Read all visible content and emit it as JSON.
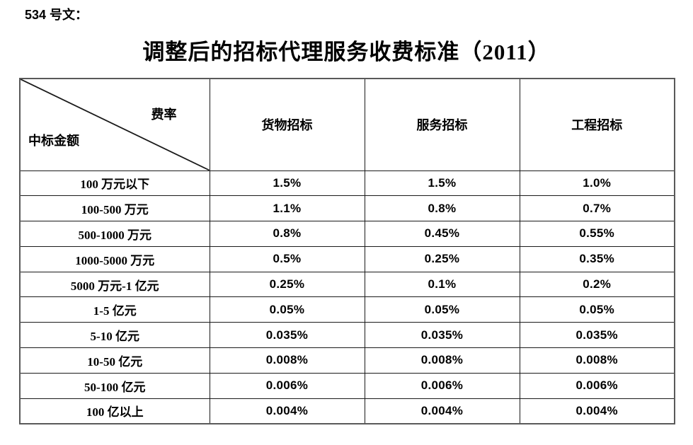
{
  "page": {
    "doc_label": "534 号文：",
    "title": "调整后的招标代理服务收费标准（2011）"
  },
  "table": {
    "corner": {
      "top_right": "费率",
      "bottom_left": "中标金额"
    },
    "columns": [
      "货物招标",
      "服务招标",
      "工程招标"
    ],
    "rows": [
      {
        "label": "100 万元以下",
        "values": [
          "1.5%",
          "1.5%",
          "1.0%"
        ]
      },
      {
        "label": "100-500 万元",
        "values": [
          "1.1%",
          "0.8%",
          "0.7%"
        ]
      },
      {
        "label": "500-1000 万元",
        "values": [
          "0.8%",
          "0.45%",
          "0.55%"
        ]
      },
      {
        "label": "1000-5000 万元",
        "values": [
          "0.5%",
          "0.25%",
          "0.35%"
        ]
      },
      {
        "label": "5000 万元-1 亿元",
        "values": [
          "0.25%",
          "0.1%",
          "0.2%"
        ]
      },
      {
        "label": "1-5 亿元",
        "values": [
          "0.05%",
          "0.05%",
          "0.05%"
        ]
      },
      {
        "label": "5-10 亿元",
        "values": [
          "0.035%",
          "0.035%",
          "0.035%"
        ]
      },
      {
        "label": "10-50 亿元",
        "values": [
          "0.008%",
          "0.008%",
          "0.008%"
        ]
      },
      {
        "label": "50-100 亿元",
        "values": [
          "0.006%",
          "0.006%",
          "0.006%"
        ]
      },
      {
        "label": "100 亿以上",
        "values": [
          "0.004%",
          "0.004%",
          "0.004%"
        ]
      }
    ]
  },
  "colors": {
    "background": "#ffffff",
    "text": "#000000",
    "border_outer": "#595959",
    "border_inner": "#1a1a1a"
  }
}
